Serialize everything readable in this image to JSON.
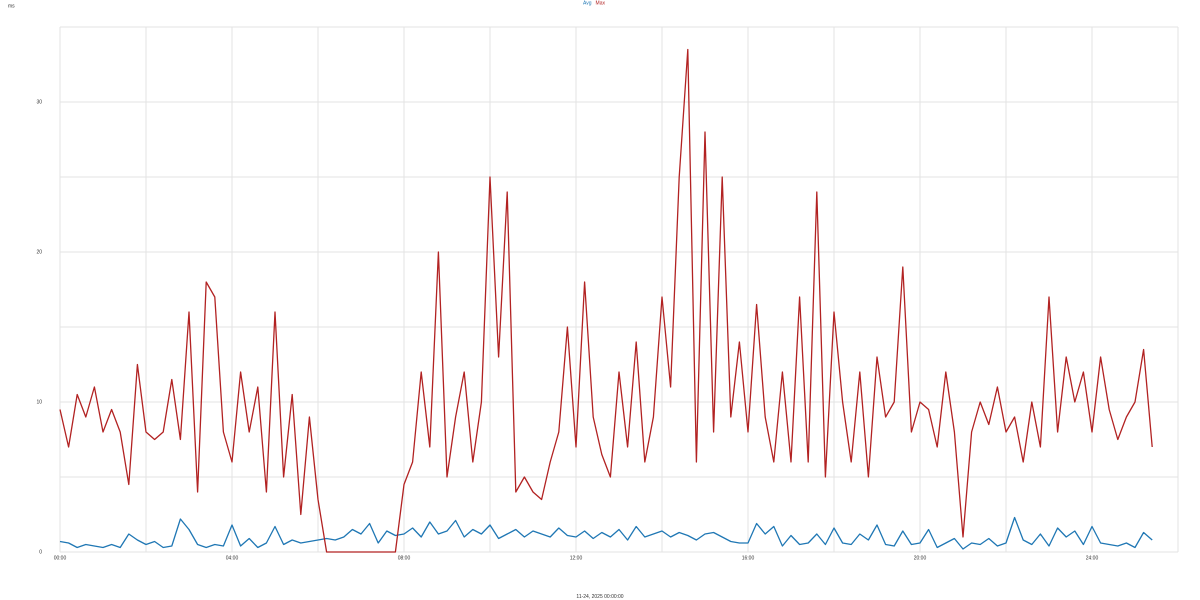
{
  "chart_data": {
    "type": "line",
    "y_label": "ms",
    "x_label": "11-24, 2025 00:00:00",
    "xlim": [
      0,
      26
    ],
    "xticks": [
      {
        "value": 0,
        "label": "00:00"
      },
      {
        "value": 4,
        "label": "04:00"
      },
      {
        "value": 8,
        "label": "08:00"
      },
      {
        "value": 12,
        "label": "12:00"
      },
      {
        "value": 16,
        "label": "16:00"
      },
      {
        "value": 20,
        "label": "20:00"
      },
      {
        "value": 24,
        "label": "24:00"
      }
    ],
    "xgrid_minor": [
      2,
      6,
      10,
      14,
      18,
      22,
      26
    ],
    "ylim": [
      0,
      35
    ],
    "yticks": [
      0,
      10,
      20,
      30
    ],
    "ygrid_minor": [
      5,
      15,
      25,
      35
    ],
    "grid": true,
    "x": [
      0,
      0.2,
      0.4,
      0.6,
      0.8,
      1,
      1.2,
      1.4,
      1.6,
      1.8,
      2,
      2.2,
      2.4,
      2.6,
      2.8,
      3,
      3.2,
      3.4,
      3.6,
      3.8,
      4,
      4.2,
      4.4,
      4.6,
      4.8,
      5,
      5.2,
      5.4,
      5.6,
      5.8,
      6,
      6.2,
      6.4,
      6.6,
      6.8,
      7,
      7.2,
      7.4,
      7.6,
      7.8,
      8,
      8.2,
      8.4,
      8.6,
      8.8,
      9,
      9.2,
      9.4,
      9.6,
      9.8,
      10,
      10.2,
      10.4,
      10.6,
      10.8,
      11,
      11.2,
      11.4,
      11.6,
      11.8,
      12,
      12.2,
      12.4,
      12.6,
      12.8,
      13,
      13.2,
      13.4,
      13.6,
      13.8,
      14,
      14.2,
      14.4,
      14.6,
      14.8,
      15,
      15.2,
      15.4,
      15.6,
      15.8,
      16,
      16.2,
      16.4,
      16.6,
      16.8,
      17,
      17.2,
      17.4,
      17.6,
      17.8,
      18,
      18.2,
      18.4,
      18.6,
      18.8,
      19,
      19.2,
      19.4,
      19.6,
      19.8,
      20,
      20.2,
      20.4,
      20.6,
      20.8,
      21,
      21.2,
      21.4,
      21.6,
      21.8,
      22,
      22.2,
      22.4,
      22.6,
      22.8,
      23,
      23.2,
      23.4,
      23.6,
      23.8,
      24,
      24.2,
      24.4,
      24.6,
      24.8,
      25,
      25.2,
      25.4
    ],
    "series": [
      {
        "name": "Avg",
        "color": "#1f77b4",
        "values": [
          0.7,
          0.6,
          0.3,
          0.5,
          0.4,
          0.3,
          0.5,
          0.3,
          1.2,
          0.8,
          0.5,
          0.7,
          0.3,
          0.4,
          2.2,
          1.5,
          0.5,
          0.3,
          0.5,
          0.4,
          1.8,
          0.4,
          0.9,
          0.3,
          0.6,
          1.7,
          0.5,
          0.8,
          0.6,
          0.7,
          0.8,
          0.9,
          0.8,
          1,
          1.5,
          1.2,
          1.9,
          0.6,
          1.4,
          1.1,
          1.2,
          1.6,
          1,
          2,
          1.2,
          1.4,
          2.1,
          1,
          1.5,
          1.2,
          1.8,
          0.9,
          1.2,
          1.5,
          1,
          1.4,
          1.2,
          1,
          1.6,
          1.1,
          1,
          1.4,
          0.9,
          1.3,
          1,
          1.5,
          0.8,
          1.7,
          1,
          1.2,
          1.4,
          1,
          1.3,
          1.1,
          0.8,
          1.2,
          1.3,
          1,
          0.7,
          0.6,
          0.6,
          1.9,
          1.2,
          1.7,
          0.4,
          1.1,
          0.5,
          0.6,
          1.2,
          0.5,
          1.6,
          0.6,
          0.5,
          1.2,
          0.8,
          1.8,
          0.5,
          0.4,
          1.4,
          0.5,
          0.6,
          1.5,
          0.3,
          0.6,
          0.9,
          0.2,
          0.6,
          0.5,
          0.9,
          0.4,
          0.6,
          2.3,
          0.8,
          0.5,
          1.2,
          0.4,
          1.6,
          1,
          1.4,
          0.5,
          1.7,
          0.6,
          0.5,
          0.4,
          0.6,
          0.3,
          1.3,
          0.8
        ]
      },
      {
        "name": "Max",
        "color": "#b22222",
        "values": [
          9.5,
          7,
          10.5,
          9,
          11,
          8,
          9.5,
          8,
          4.5,
          12.5,
          8,
          7.5,
          8,
          11.5,
          7.5,
          16,
          4,
          18,
          17,
          8,
          6,
          12,
          8,
          11,
          4,
          16,
          5,
          10.5,
          2.5,
          9,
          3.5,
          0,
          0,
          0,
          0,
          0,
          0,
          0,
          0,
          0,
          4.5,
          6,
          12,
          7,
          20,
          5,
          9,
          12,
          6,
          10,
          25,
          13,
          24,
          4,
          5,
          4,
          3.5,
          6,
          8,
          15,
          7,
          18,
          9,
          6.5,
          5,
          12,
          7,
          14,
          6,
          9,
          17,
          11,
          25,
          33.5,
          6,
          28,
          8,
          25,
          9,
          14,
          8,
          16.5,
          9,
          6,
          12,
          6,
          17,
          6,
          24,
          5,
          16,
          10,
          6,
          12,
          5,
          13,
          9,
          10,
          19,
          8,
          10,
          9.5,
          7,
          12,
          8,
          1,
          8,
          10,
          8.5,
          11,
          8,
          9,
          6,
          10,
          7,
          17,
          8,
          13,
          10,
          12,
          8,
          13,
          9.5,
          7.5,
          9,
          10,
          13.5,
          7
        ]
      }
    ]
  }
}
